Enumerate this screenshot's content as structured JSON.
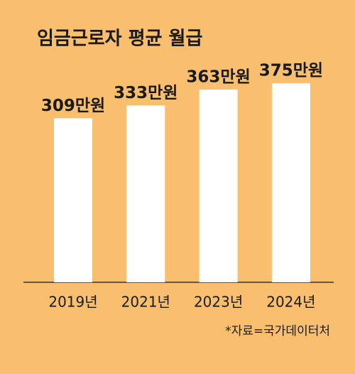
{
  "chart_data": {
    "type": "bar",
    "title": "임금근로자 평균 월급",
    "categories": [
      "2019년",
      "2021년",
      "2023년",
      "2024년"
    ],
    "values": [
      309,
      333,
      363,
      375
    ],
    "value_labels": [
      "309만원",
      "333만원",
      "363만원",
      "375만원"
    ],
    "color": "#ffffff",
    "note": "*자료=국가데이터처"
  }
}
